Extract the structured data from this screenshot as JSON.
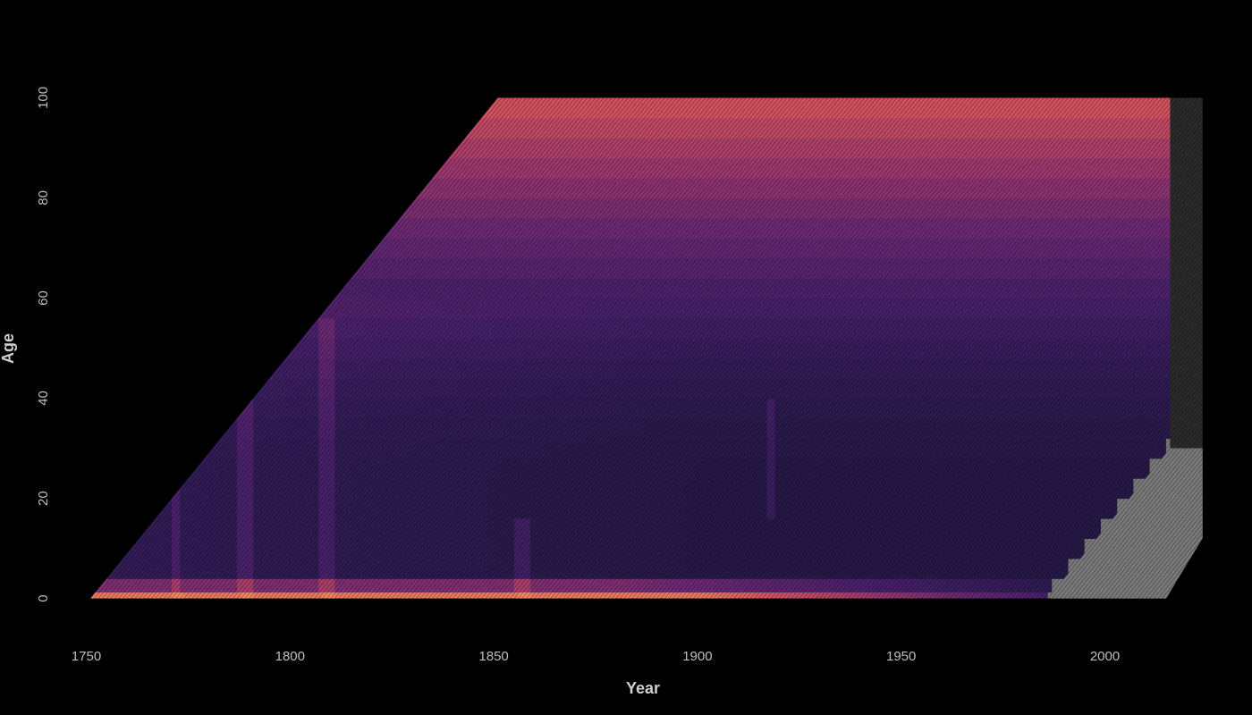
{
  "chart_data": {
    "type": "heatmap",
    "title": "",
    "xlabel": "Year",
    "ylabel": "Age",
    "xlim": [
      1742,
      2035
    ],
    "ylim": [
      -4,
      104
    ],
    "x_ticks": [
      1750,
      1800,
      1850,
      1900,
      1950,
      2000
    ],
    "y_ticks": [
      0,
      20,
      40,
      60,
      80,
      100
    ],
    "grid": false,
    "legend": "none",
    "data_year_range": [
      1751,
      2016
    ],
    "data_age_range": [
      0,
      100
    ],
    "cohort_diagonal": true,
    "missing_after_year": 1985,
    "palette": [
      "#1a1633",
      "#2a1a4d",
      "#46206a",
      "#6d2a72",
      "#a33a6c",
      "#d6545e",
      "#f08a5c"
    ],
    "missing_color": "#7a7a7a",
    "background": "#000000",
    "notable_bands": [
      {
        "year": 1772,
        "age_range": [
          0,
          30
        ]
      },
      {
        "year": 1789,
        "age_range": [
          0,
          40
        ]
      },
      {
        "year": 1809,
        "age_range": [
          0,
          55
        ]
      },
      {
        "year": 1857,
        "age_range": [
          0,
          15
        ]
      },
      {
        "year": 1918,
        "age_range": [
          18,
          40
        ]
      }
    ]
  }
}
